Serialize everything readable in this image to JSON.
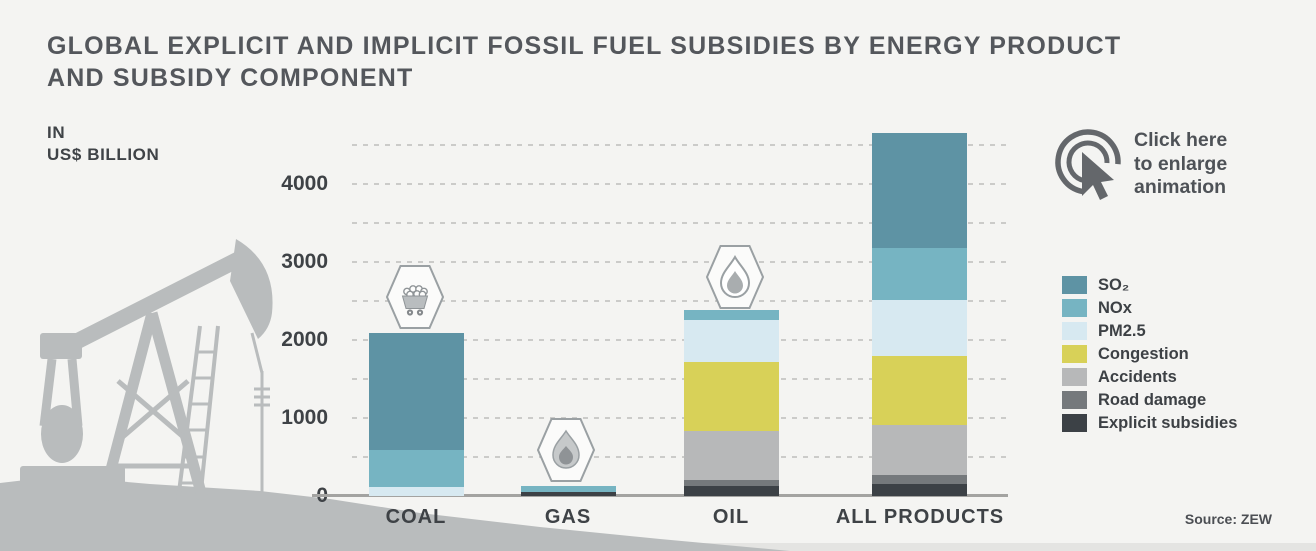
{
  "title": {
    "line1": "GLOBAL EXPLICIT AND IMPLICIT FOSSIL FUEL SUBSIDIES BY ENERGY PRODUCT",
    "line2": "AND SUBSIDY COMPONENT"
  },
  "axis_unit": {
    "line1": "IN",
    "line2": "US$ BILLION"
  },
  "enlarge_note": {
    "line1": "Click here",
    "line2": "to enlarge",
    "line3": "animation"
  },
  "source": "Source: ZEW",
  "icons": {
    "coal": "coal-cart-icon",
    "gas": "flame-icon",
    "oil": "oil-drop-icon",
    "enlarge": "click-cursor-icon",
    "decoration": "oil-pumpjack-silhouette"
  },
  "chart_data": {
    "type": "bar",
    "stacked": true,
    "unit": "US$ billion",
    "title": "Global explicit and implicit fossil fuel subsidies by energy product and subsidy component",
    "ylabel": "IN US$ BILLION",
    "xlabel": "",
    "categories": [
      "COAL",
      "GAS",
      "OIL",
      "ALL PRODUCTS"
    ],
    "category_icons": [
      "coal-cart-icon",
      "flame-icon",
      "oil-drop-icon",
      ""
    ],
    "components": [
      {
        "name": "SO₂",
        "color": "#5e93a4",
        "values": [
          1500,
          0,
          0,
          1475
        ]
      },
      {
        "name": "NOx",
        "color": "#76b4c2",
        "values": [
          470,
          80,
          125,
          670
        ]
      },
      {
        "name": "PM2.5",
        "color": "#d7e9f1",
        "values": [
          115,
          0,
          545,
          725
        ]
      },
      {
        "name": "Congestion",
        "color": "#d8d158",
        "values": [
          0,
          0,
          875,
          880
        ]
      },
      {
        "name": "Accidents",
        "color": "#b7b8b9",
        "values": [
          0,
          0,
          640,
          640
        ]
      },
      {
        "name": "Road damage",
        "color": "#75797c",
        "values": [
          0,
          0,
          65,
          110
        ]
      },
      {
        "name": "Explicit subsidies",
        "color": "#3c4146",
        "values": [
          0,
          50,
          135,
          160
        ]
      }
    ],
    "totals_estimated": [
      2085,
      130,
      2385,
      4660
    ],
    "y_ticks": [
      0,
      1000,
      2000,
      3000,
      4000
    ],
    "ylim": [
      0,
      4700
    ],
    "grid": "dashed horizontal lines every 500",
    "legend_position": "right"
  }
}
